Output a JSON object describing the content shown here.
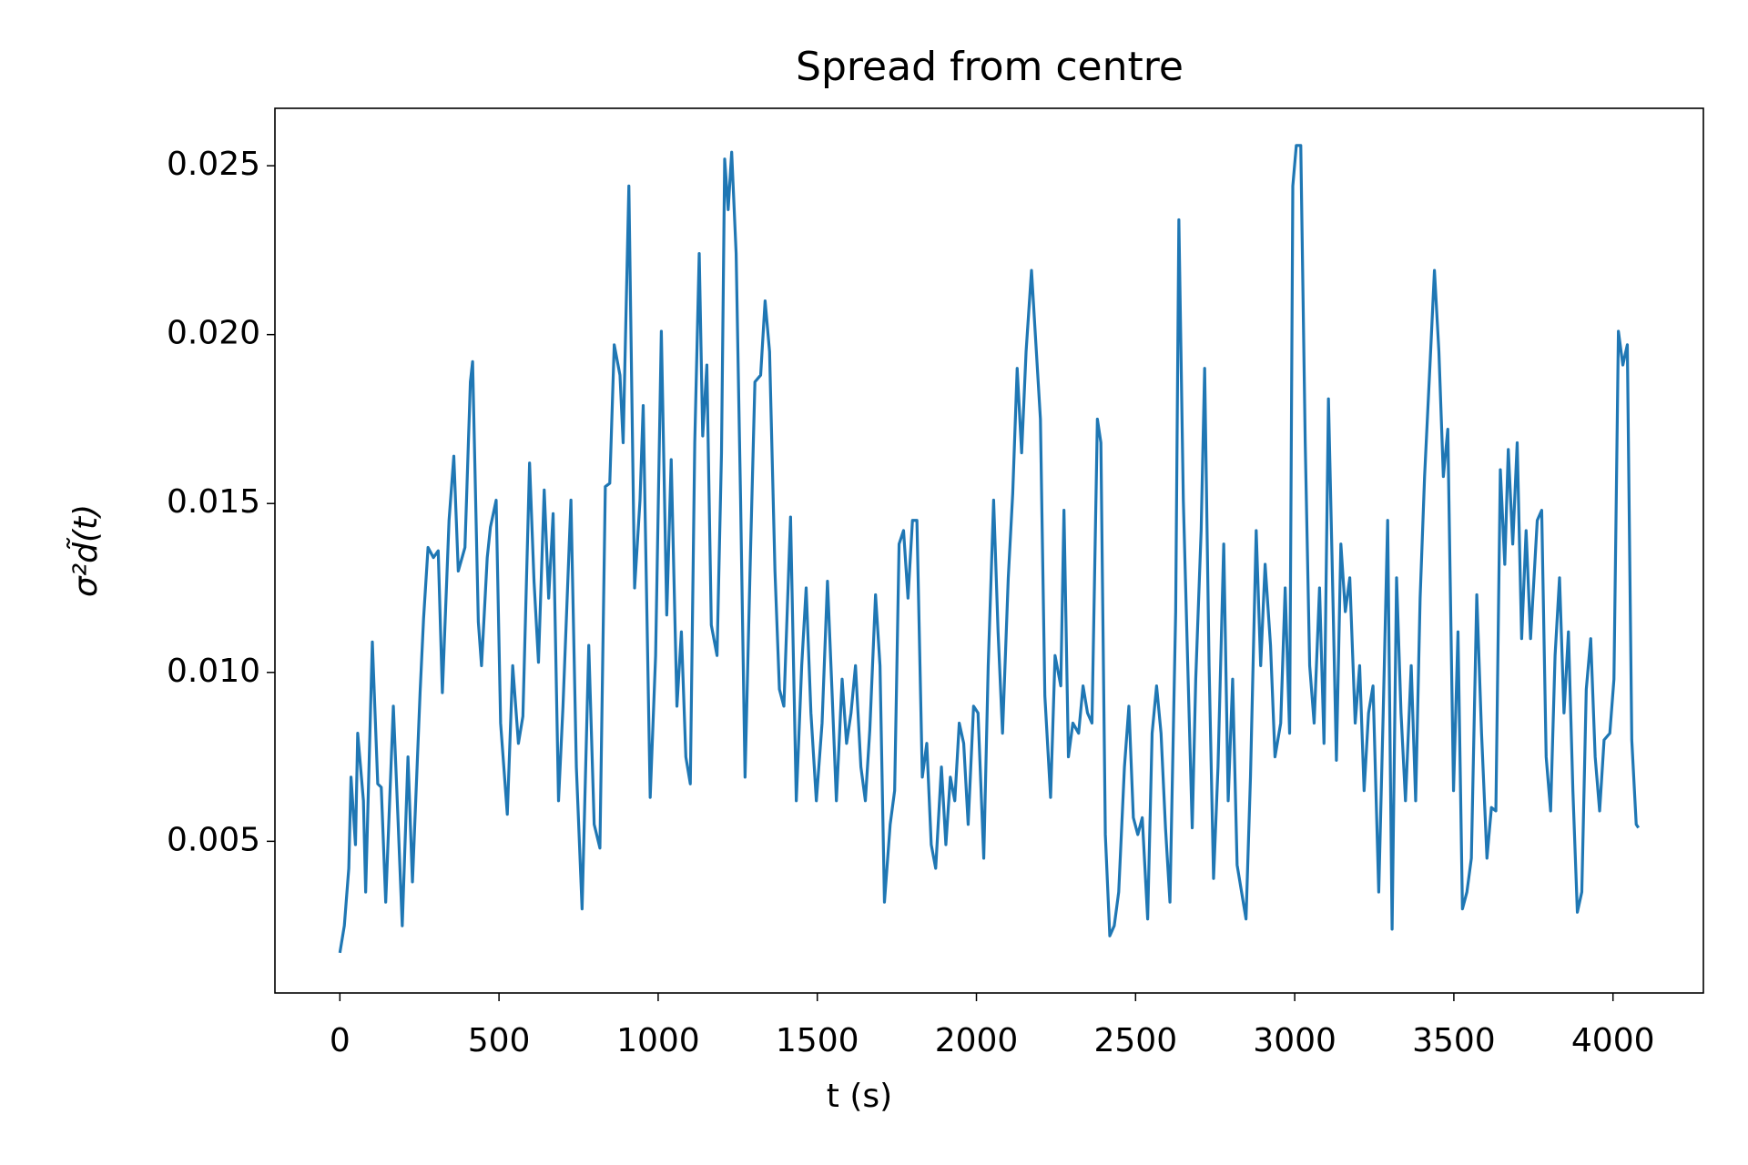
{
  "chart_data": {
    "type": "line",
    "title": "Spread from centre",
    "x_label": "t (s)",
    "y_label": "σ²d̃(t)",
    "color": "#1f77b4",
    "x": [
      0,
      14,
      28,
      35,
      49,
      56,
      74,
      81,
      102,
      119,
      130,
      144,
      168,
      182,
      196,
      214,
      228,
      252,
      263,
      277,
      294,
      309,
      322,
      343,
      358,
      372,
      393,
      410,
      417,
      435,
      445,
      463,
      473,
      491,
      505,
      526,
      543,
      561,
      575,
      596,
      610,
      624,
      642,
      656,
      670,
      687,
      701,
      726,
      743,
      761,
      782,
      799,
      817,
      834,
      848,
      862,
      880,
      890,
      908,
      926,
      943,
      953,
      975,
      992,
      1010,
      1027,
      1041,
      1059,
      1073,
      1087,
      1101,
      1115,
      1129,
      1140,
      1153,
      1167,
      1185,
      1199,
      1209,
      1220,
      1231,
      1245,
      1259,
      1273,
      1290,
      1304,
      1322,
      1336,
      1350,
      1367,
      1381,
      1395,
      1416,
      1434,
      1451,
      1465,
      1480,
      1497,
      1515,
      1532,
      1546,
      1560,
      1578,
      1592,
      1606,
      1620,
      1637,
      1651,
      1665,
      1683,
      1697,
      1711,
      1729,
      1743,
      1757,
      1771,
      1785,
      1799,
      1813,
      1830,
      1844,
      1858,
      1872,
      1890,
      1904,
      1918,
      1932,
      1946,
      1960,
      1974,
      1991,
      2005,
      2023,
      2037,
      2054,
      2068,
      2082,
      2100,
      2114,
      2128,
      2142,
      2156,
      2173,
      2187,
      2201,
      2215,
      2233,
      2247,
      2265,
      2275,
      2289,
      2303,
      2321,
      2335,
      2349,
      2363,
      2380,
      2391,
      2405,
      2419,
      2433,
      2447,
      2465,
      2479,
      2493,
      2507,
      2521,
      2538,
      2552,
      2566,
      2580,
      2594,
      2608,
      2626,
      2636,
      2650,
      2664,
      2678,
      2689,
      2706,
      2717,
      2731,
      2745,
      2759,
      2777,
      2791,
      2805,
      2819,
      2833,
      2847,
      2861,
      2879,
      2893,
      2907,
      2924,
      2938,
      2956,
      2970,
      2984,
      2994,
      3005,
      3019,
      3033,
      3047,
      3061,
      3078,
      3092,
      3106,
      3117,
      3131,
      3145,
      3159,
      3173,
      3190,
      3204,
      3218,
      3232,
      3246,
      3264,
      3278,
      3292,
      3306,
      3320,
      3334,
      3348,
      3366,
      3380,
      3394,
      3408,
      3425,
      3439,
      3453,
      3467,
      3481,
      3499,
      3513,
      3527,
      3541,
      3555,
      3572,
      3587,
      3604,
      3618,
      3632,
      3646,
      3660,
      3671,
      3685,
      3699,
      3713,
      3727,
      3741,
      3762,
      3776,
      3790,
      3804,
      3818,
      3832,
      3846,
      3860,
      3874,
      3888,
      3902,
      3916,
      3930,
      3944,
      3958,
      3972,
      3990,
      4003,
      4017,
      4031,
      4045,
      4059,
      4073,
      4080
    ],
    "values": [
      0.0017,
      0.0025,
      0.0042,
      0.0069,
      0.0049,
      0.0082,
      0.0062,
      0.0035,
      0.0109,
      0.0067,
      0.0066,
      0.0032,
      0.009,
      0.0058,
      0.0025,
      0.0075,
      0.0038,
      0.0094,
      0.0116,
      0.0137,
      0.0134,
      0.0136,
      0.0094,
      0.0145,
      0.0164,
      0.013,
      0.0137,
      0.0186,
      0.0192,
      0.0115,
      0.0102,
      0.0134,
      0.0143,
      0.0151,
      0.0085,
      0.0058,
      0.0102,
      0.0079,
      0.0087,
      0.0162,
      0.0127,
      0.0103,
      0.0154,
      0.0122,
      0.0147,
      0.0062,
      0.009,
      0.0151,
      0.0072,
      0.003,
      0.0108,
      0.0055,
      0.0048,
      0.0155,
      0.0156,
      0.0197,
      0.0188,
      0.0168,
      0.0244,
      0.0125,
      0.0151,
      0.0179,
      0.0063,
      0.0105,
      0.0201,
      0.0117,
      0.0163,
      0.009,
      0.0112,
      0.0075,
      0.0067,
      0.0168,
      0.0224,
      0.017,
      0.0191,
      0.0114,
      0.0105,
      0.0165,
      0.0252,
      0.0237,
      0.0254,
      0.0224,
      0.0151,
      0.0069,
      0.0135,
      0.0186,
      0.0188,
      0.021,
      0.0195,
      0.013,
      0.0095,
      0.009,
      0.0146,
      0.0062,
      0.0102,
      0.0125,
      0.0088,
      0.0062,
      0.0085,
      0.0127,
      0.0095,
      0.0062,
      0.0098,
      0.0079,
      0.0088,
      0.0102,
      0.0072,
      0.0062,
      0.0083,
      0.0123,
      0.0102,
      0.0032,
      0.0055,
      0.0065,
      0.0138,
      0.0142,
      0.0122,
      0.0145,
      0.0145,
      0.0069,
      0.0079,
      0.0049,
      0.0042,
      0.0072,
      0.0049,
      0.0069,
      0.0062,
      0.0085,
      0.0079,
      0.0055,
      0.009,
      0.0088,
      0.0045,
      0.0102,
      0.0151,
      0.0112,
      0.0082,
      0.0128,
      0.0153,
      0.019,
      0.0165,
      0.0195,
      0.0219,
      0.0197,
      0.0175,
      0.0093,
      0.0063,
      0.0105,
      0.0096,
      0.0148,
      0.0075,
      0.0085,
      0.0082,
      0.0096,
      0.0088,
      0.0085,
      0.0175,
      0.0168,
      0.0052,
      0.0022,
      0.0025,
      0.0035,
      0.0072,
      0.009,
      0.0057,
      0.0052,
      0.0057,
      0.0027,
      0.0082,
      0.0096,
      0.0082,
      0.0054,
      0.0032,
      0.0118,
      0.0234,
      0.0151,
      0.0102,
      0.0054,
      0.0098,
      0.0142,
      0.019,
      0.0102,
      0.0039,
      0.0072,
      0.0138,
      0.0062,
      0.0098,
      0.0043,
      0.0035,
      0.0027,
      0.0069,
      0.0142,
      0.0102,
      0.0132,
      0.0108,
      0.0075,
      0.0085,
      0.0125,
      0.0082,
      0.0244,
      0.0256,
      0.0256,
      0.0168,
      0.0102,
      0.0085,
      0.0125,
      0.0079,
      0.0181,
      0.0135,
      0.0074,
      0.0138,
      0.0118,
      0.0128,
      0.0085,
      0.0102,
      0.0065,
      0.0088,
      0.0096,
      0.0035,
      0.0088,
      0.0145,
      0.0024,
      0.0128,
      0.0088,
      0.0062,
      0.0102,
      0.0062,
      0.0122,
      0.0158,
      0.0191,
      0.0219,
      0.0195,
      0.0158,
      0.0172,
      0.0065,
      0.0112,
      0.003,
      0.0035,
      0.0045,
      0.0123,
      0.0082,
      0.0045,
      0.006,
      0.0059,
      0.016,
      0.0132,
      0.0166,
      0.0138,
      0.0168,
      0.011,
      0.0142,
      0.011,
      0.0145,
      0.0148,
      0.0075,
      0.0059,
      0.0105,
      0.0128,
      0.0088,
      0.0112,
      0.0065,
      0.0029,
      0.0035,
      0.0095,
      0.011,
      0.0075,
      0.0059,
      0.008,
      0.0082,
      0.0098,
      0.0201,
      0.0191,
      0.0197,
      0.008,
      0.0055,
      0.0054
    ],
    "xlim": [
      -204,
      4284
    ],
    "ylim": [
      0.00051,
      0.0267
    ],
    "xticks": [
      0,
      500,
      1000,
      1500,
      2000,
      2500,
      3000,
      3500,
      4000
    ],
    "yticks": [
      0.005,
      {
        "value": 0.01,
        "label": "0.010"
      },
      0.015,
      {
        "value": 0.02,
        "label": "0.020"
      },
      0.025
    ]
  }
}
